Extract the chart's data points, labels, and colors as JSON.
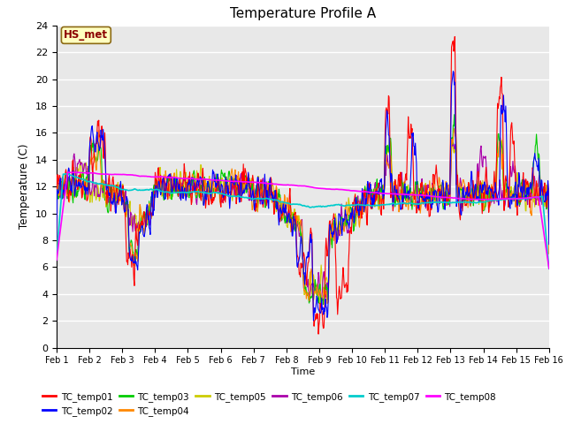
{
  "title": "Temperature Profile A",
  "xlabel": "Time",
  "ylabel": "Temperature (C)",
  "ylim": [
    0,
    24
  ],
  "yticks": [
    0,
    2,
    4,
    6,
    8,
    10,
    12,
    14,
    16,
    18,
    20,
    22,
    24
  ],
  "xtick_labels": [
    "Feb 1",
    "Feb 2",
    "Feb 3",
    "Feb 4",
    "Feb 5",
    "Feb 6",
    "Feb 7",
    "Feb 8",
    "Feb 9",
    "Feb 10",
    "Feb 11",
    "Feb 12",
    "Feb 13",
    "Feb 14",
    "Feb 15",
    "Feb 16"
  ],
  "annotation_text": "HS_met",
  "annotation_color": "#8B0000",
  "annotation_bg": "#FFFFC0",
  "series_colors": {
    "TC_temp01": "#FF0000",
    "TC_temp02": "#0000FF",
    "TC_temp03": "#00CC00",
    "TC_temp04": "#FF8800",
    "TC_temp05": "#CCCC00",
    "TC_temp06": "#AA00AA",
    "TC_temp07": "#00CCCC",
    "TC_temp08": "#FF00FF"
  },
  "plot_bg": "#E8E8E8",
  "fig_bg": "#FFFFFF",
  "grid_color": "#FFFFFF",
  "title_fontsize": 11,
  "n_points": 900,
  "seed": 17
}
